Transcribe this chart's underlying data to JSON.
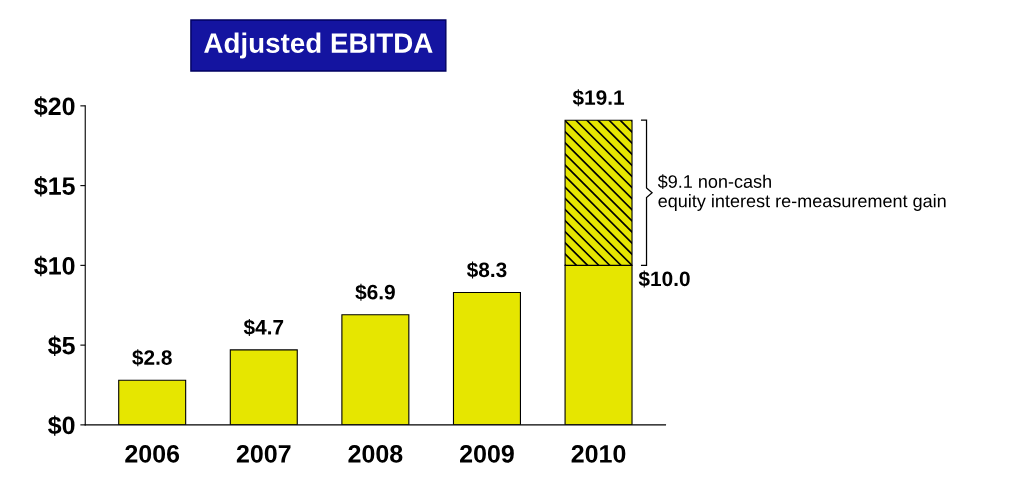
{
  "chart_data": {
    "type": "bar",
    "title": "Adjusted EBITDA",
    "stacked": true,
    "categories": [
      "2006",
      "2007",
      "2008",
      "2009",
      "2010"
    ],
    "series": [
      {
        "color": "#e6e600",
        "values": [
          2.8,
          4.7,
          6.9,
          8.3,
          10.0
        ],
        "value_labels": [
          "$2.8",
          "$4.7",
          "$6.9",
          "$8.3",
          null
        ]
      },
      {
        "color": "#e6e600",
        "values": [
          null,
          null,
          null,
          null,
          9.1
        ]
      }
    ],
    "totals": [
      null,
      null,
      null,
      null,
      "$19.1"
    ],
    "annotations": [
      "$9.1 non-cash\nequity interest re-measurement gain",
      {
        "text": "$10.0",
        "x": "2010",
        "y": 10.0
      }
    ],
    "ylim": [
      0,
      20
    ],
    "yticks": [
      {
        "value": 0,
        "label": "$0"
      },
      {
        "value": 5,
        "label": "$5"
      },
      {
        "value": 10,
        "label": "$10"
      },
      {
        "value": 15,
        "label": "$15"
      },
      {
        "value": 20,
        "label": "$20"
      }
    ],
    "grid": false,
    "legend": false
  }
}
